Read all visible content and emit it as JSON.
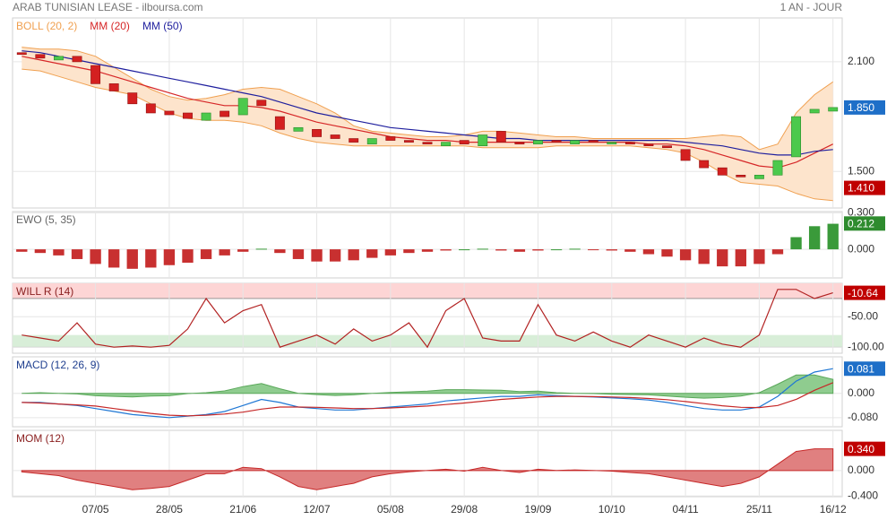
{
  "header": {
    "title": "ARAB TUNISIAN LEASE - ilboursa.com",
    "period": "1 AN - JOUR"
  },
  "chart_data": [
    {
      "type": "candlestick",
      "series": [
        {
          "name": "BOLL (20, 2)",
          "color": "#f0a050",
          "fill": "#fde4cc",
          "upper": [
            2.18,
            2.17,
            2.17,
            2.16,
            2.13,
            2.07,
            2.01,
            1.95,
            1.91,
            1.89,
            1.9,
            1.92,
            1.95,
            1.96,
            1.95,
            1.91,
            1.87,
            1.82,
            1.75,
            1.72,
            1.71,
            1.7,
            1.69,
            1.69,
            1.7,
            1.72,
            1.72,
            1.71,
            1.7,
            1.69,
            1.69,
            1.68,
            1.68,
            1.68,
            1.68,
            1.68,
            1.68,
            1.69,
            1.7,
            1.69,
            1.62,
            1.65,
            1.82,
            1.92,
            1.99
          ],
          "lower": [
            2.06,
            2.05,
            2.02,
            1.99,
            1.96,
            1.94,
            1.92,
            1.87,
            1.82,
            1.79,
            1.78,
            1.78,
            1.77,
            1.75,
            1.71,
            1.68,
            1.66,
            1.65,
            1.64,
            1.64,
            1.64,
            1.64,
            1.64,
            1.64,
            1.64,
            1.63,
            1.63,
            1.63,
            1.63,
            1.64,
            1.64,
            1.64,
            1.64,
            1.64,
            1.63,
            1.62,
            1.6,
            1.55,
            1.49,
            1.44,
            1.43,
            1.42,
            1.38,
            1.35,
            1.34
          ]
        },
        {
          "name": "MM (20)",
          "color": "#d62728",
          "values": [
            2.13,
            2.11,
            2.09,
            2.07,
            2.05,
            2.02,
            1.99,
            1.96,
            1.93,
            1.9,
            1.88,
            1.86,
            1.86,
            1.85,
            1.83,
            1.8,
            1.77,
            1.75,
            1.73,
            1.71,
            1.69,
            1.68,
            1.67,
            1.67,
            1.66,
            1.66,
            1.66,
            1.66,
            1.66,
            1.66,
            1.66,
            1.66,
            1.66,
            1.66,
            1.65,
            1.65,
            1.64,
            1.62,
            1.59,
            1.56,
            1.53,
            1.52,
            1.55,
            1.6,
            1.65
          ]
        },
        {
          "name": "MM (50)",
          "color": "#1f1f9e",
          "values": [
            2.16,
            2.15,
            2.13,
            2.11,
            2.09,
            2.07,
            2.05,
            2.03,
            2.01,
            1.99,
            1.97,
            1.95,
            1.93,
            1.91,
            1.88,
            1.85,
            1.82,
            1.8,
            1.78,
            1.76,
            1.74,
            1.73,
            1.72,
            1.71,
            1.7,
            1.69,
            1.68,
            1.68,
            1.67,
            1.67,
            1.67,
            1.67,
            1.67,
            1.67,
            1.67,
            1.67,
            1.66,
            1.65,
            1.64,
            1.62,
            1.6,
            1.59,
            1.59,
            1.61,
            1.62
          ]
        }
      ],
      "open": [
        2.15,
        2.14,
        2.11,
        2.13,
        2.08,
        1.98,
        1.93,
        1.87,
        1.83,
        1.82,
        1.78,
        1.83,
        1.81,
        1.89,
        1.8,
        1.72,
        1.73,
        1.7,
        1.68,
        1.65,
        1.69,
        1.67,
        1.66,
        1.64,
        1.67,
        1.64,
        1.72,
        1.66,
        1.65,
        1.67,
        1.65,
        1.67,
        1.65,
        1.66,
        1.65,
        1.64,
        1.62,
        1.56,
        1.52,
        1.48,
        1.46,
        1.48,
        1.58,
        1.82,
        1.83
      ],
      "close": [
        2.14,
        2.12,
        2.13,
        2.1,
        1.98,
        1.94,
        1.87,
        1.82,
        1.81,
        1.79,
        1.82,
        1.8,
        1.9,
        1.86,
        1.73,
        1.74,
        1.69,
        1.68,
        1.66,
        1.68,
        1.67,
        1.66,
        1.65,
        1.66,
        1.65,
        1.7,
        1.66,
        1.65,
        1.67,
        1.66,
        1.67,
        1.66,
        1.66,
        1.65,
        1.64,
        1.63,
        1.56,
        1.52,
        1.48,
        1.47,
        1.48,
        1.56,
        1.8,
        1.84,
        1.85
      ],
      "up_color": "#4cc94c",
      "down_color": "#d42020",
      "ylim": [
        1.3,
        2.34
      ],
      "yticks": [
        {
          "value": 1.5,
          "label": "1.500"
        },
        {
          "value": 2.1,
          "label": "2.100"
        }
      ],
      "markers": [
        {
          "value": 1.85,
          "label": "1.850",
          "color": "#1e6fc8"
        },
        {
          "value": 1.41,
          "label": "1.410",
          "color": "#c00000"
        }
      ]
    },
    {
      "type": "bar",
      "title": "EWO (5, 35)",
      "title_color": "#666666",
      "values": [
        -0.02,
        -0.03,
        -0.05,
        -0.08,
        -0.12,
        -0.15,
        -0.16,
        -0.15,
        -0.13,
        -0.11,
        -0.08,
        -0.05,
        -0.02,
        0.005,
        -0.03,
        -0.08,
        -0.1,
        -0.1,
        -0.09,
        -0.07,
        -0.05,
        -0.03,
        -0.02,
        -0.01,
        0,
        0.005,
        -0.01,
        -0.02,
        -0.01,
        0,
        0.005,
        -0.005,
        -0.01,
        -0.02,
        -0.04,
        -0.06,
        -0.09,
        -0.12,
        -0.14,
        -0.14,
        -0.12,
        -0.04,
        0.1,
        0.19,
        0.21
      ],
      "up_color": "#3a9a3a",
      "down_color": "#c83030",
      "ylim": [
        -0.235,
        0.31
      ],
      "yticks": [
        {
          "value": 0,
          "label": "0.000"
        },
        {
          "value": 0.3,
          "label": "0.300"
        }
      ],
      "markers": [
        {
          "value": 0.212,
          "label": "0.212",
          "color": "#2e8b2e"
        }
      ]
    },
    {
      "type": "line",
      "title": "WILL R (14)",
      "title_color": "#8b2020",
      "series": [
        {
          "color": "#b22222",
          "values": [
            -80,
            -85,
            -90,
            -60,
            -95,
            -100,
            -98,
            -100,
            -97,
            -70,
            -20,
            -60,
            -40,
            -30,
            -100,
            -90,
            -80,
            -95,
            -70,
            -90,
            -80,
            -60,
            -100,
            -40,
            -20,
            -85,
            -90,
            -90,
            -30,
            -80,
            -90,
            -75,
            -90,
            -100,
            -80,
            -90,
            -100,
            -85,
            -95,
            -100,
            -80,
            -5,
            -5,
            -20,
            -10.64
          ]
        }
      ],
      "zones": [
        {
          "from": 5,
          "to": -20,
          "color": "#fdd5d5"
        },
        {
          "from": -80,
          "to": -100,
          "color": "#d8eed8"
        }
      ],
      "ylim": [
        -110,
        5
      ],
      "yticks": [
        {
          "value": -50,
          "label": "-50.00"
        },
        {
          "value": -100,
          "label": "-100.00"
        }
      ],
      "markers": [
        {
          "value": -10.64,
          "label": "-10.64",
          "color": "#c00000"
        }
      ]
    },
    {
      "type": "line",
      "title": "MACD (12, 26, 9)",
      "title_color": "#1f3f8f",
      "series": [
        {
          "color": "#5aa85a",
          "fill": "#8fcc8f",
          "style": "area",
          "values": [
            0,
            0.002,
            0,
            -0.002,
            -0.008,
            -0.01,
            -0.012,
            -0.009,
            -0.008,
            -0.001,
            0.002,
            0.008,
            0.022,
            0.032,
            0.015,
            0,
            -0.004,
            -0.007,
            -0.005,
            0,
            0.003,
            0.005,
            0.007,
            0.012,
            0.012,
            0.011,
            0.01,
            0.006,
            0.007,
            0.002,
            0,
            -0.001,
            -0.003,
            -0.004,
            -0.005,
            -0.009,
            -0.013,
            -0.016,
            -0.014,
            -0.009,
            0.002,
            0.03,
            0.06,
            0.06,
            0.046
          ]
        },
        {
          "color": "#1f77d4",
          "values": [
            -0.03,
            -0.03,
            -0.035,
            -0.04,
            -0.05,
            -0.06,
            -0.07,
            -0.075,
            -0.08,
            -0.075,
            -0.07,
            -0.06,
            -0.04,
            -0.02,
            -0.03,
            -0.045,
            -0.05,
            -0.055,
            -0.055,
            -0.05,
            -0.045,
            -0.04,
            -0.035,
            -0.025,
            -0.02,
            -0.015,
            -0.01,
            -0.01,
            -0.005,
            -0.008,
            -0.01,
            -0.012,
            -0.015,
            -0.018,
            -0.022,
            -0.03,
            -0.04,
            -0.05,
            -0.055,
            -0.055,
            -0.045,
            -0.01,
            0.04,
            0.07,
            0.081
          ]
        },
        {
          "color": "#c62828",
          "values": [
            -0.03,
            -0.032,
            -0.035,
            -0.038,
            -0.042,
            -0.05,
            -0.058,
            -0.066,
            -0.072,
            -0.074,
            -0.072,
            -0.068,
            -0.062,
            -0.052,
            -0.045,
            -0.045,
            -0.046,
            -0.048,
            -0.05,
            -0.05,
            -0.048,
            -0.045,
            -0.042,
            -0.037,
            -0.032,
            -0.026,
            -0.02,
            -0.016,
            -0.012,
            -0.01,
            -0.01,
            -0.011,
            -0.012,
            -0.014,
            -0.017,
            -0.021,
            -0.027,
            -0.034,
            -0.041,
            -0.046,
            -0.047,
            -0.04,
            -0.02,
            0.01,
            0.035
          ]
        }
      ],
      "ylim": [
        -0.11,
        0.12
      ],
      "yticks": [
        {
          "value": 0,
          "label": "0.000"
        },
        {
          "value": -0.08,
          "label": "-0.080"
        }
      ],
      "markers": [
        {
          "value": 0.081,
          "label": "0.081",
          "color": "#1e6fc8"
        }
      ]
    },
    {
      "type": "area",
      "title": "MOM (12)",
      "title_color": "#8b2020",
      "color": "#c62828",
      "fill": "#e08080",
      "values": [
        -0.02,
        -0.05,
        -0.08,
        -0.15,
        -0.2,
        -0.25,
        -0.3,
        -0.28,
        -0.25,
        -0.15,
        -0.05,
        -0.05,
        0.05,
        0.03,
        -0.1,
        -0.25,
        -0.3,
        -0.25,
        -0.2,
        -0.1,
        -0.05,
        -0.02,
        0,
        0.02,
        -0.01,
        0.05,
        0,
        -0.03,
        0.02,
        0,
        0.01,
        0,
        -0.01,
        -0.03,
        -0.05,
        -0.1,
        -0.15,
        -0.2,
        -0.25,
        -0.2,
        -0.1,
        0.1,
        0.3,
        0.34,
        0.34
      ],
      "categories": [
        null,
        null,
        null,
        null,
        "07/05",
        null,
        null,
        null,
        "28/05",
        null,
        null,
        null,
        "21/06",
        null,
        null,
        null,
        "12/07",
        null,
        null,
        null,
        "05/08",
        null,
        null,
        null,
        "29/08",
        null,
        null,
        null,
        "19/09",
        null,
        null,
        null,
        "10/10",
        null,
        null,
        null,
        "04/11",
        null,
        null,
        null,
        "25/11",
        null,
        null,
        null,
        "16/12"
      ],
      "ylim": [
        -0.41,
        0.63
      ],
      "yticks": [
        {
          "value": 0,
          "label": "0.000"
        },
        {
          "value": -0.4,
          "label": "-0.400"
        }
      ],
      "markers": [
        {
          "value": 0.34,
          "label": "0.340",
          "color": "#c00000"
        }
      ]
    }
  ]
}
